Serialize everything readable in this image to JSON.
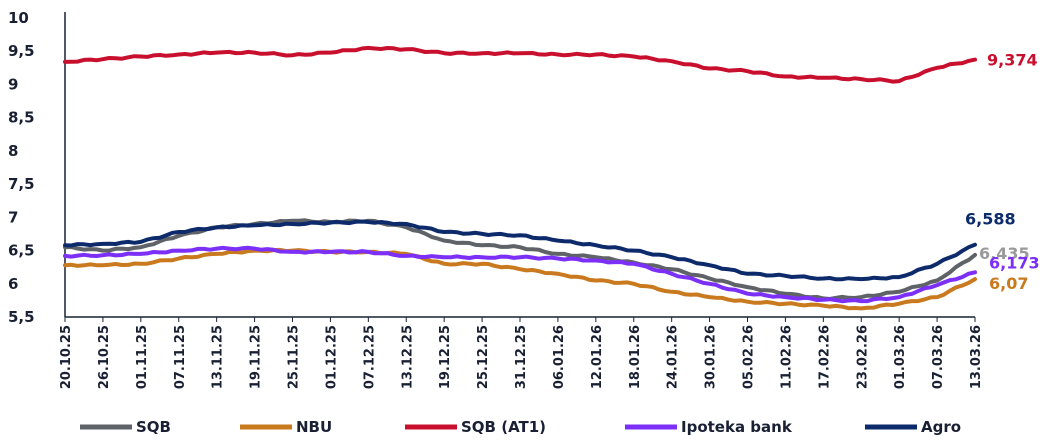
{
  "chart_data": {
    "type": "line",
    "title": "",
    "xlabel": "",
    "ylabel": "",
    "ylim": [
      5.5,
      10
    ],
    "yticks": [
      "10",
      "9,5",
      "9",
      "8,5",
      "8",
      "7,5",
      "7",
      "6,5",
      "6",
      "5,5"
    ],
    "ytick_values": [
      10,
      9.5,
      9,
      8.5,
      8,
      7.5,
      7,
      6.5,
      6,
      5.5
    ],
    "x": [
      "20.10.25",
      "26.10.25",
      "01.11.25",
      "07.11.25",
      "13.11.25",
      "19.11.25",
      "25.11.25",
      "01.12.25",
      "07.12.25",
      "13.12.25",
      "19.12.25",
      "25.12.25",
      "31.12.25",
      "06.01.26",
      "12.01.26",
      "18.01.26",
      "24.01.26",
      "30.01.26",
      "05.02.26",
      "11.02.26",
      "17.02.26",
      "23.02.26",
      "01.03.26",
      "07.03.26",
      "13.03.26"
    ],
    "grid": false,
    "legend_position": "bottom",
    "series": [
      {
        "name": "SQB",
        "color": "#5f6368",
        "values": [
          6.55,
          6.5,
          6.55,
          6.72,
          6.85,
          6.9,
          6.95,
          6.93,
          6.95,
          6.85,
          6.65,
          6.58,
          6.55,
          6.45,
          6.4,
          6.32,
          6.22,
          6.08,
          5.95,
          5.85,
          5.78,
          5.8,
          5.88,
          6.05,
          6.435
        ],
        "end_label": "6,435"
      },
      {
        "name": "NBU",
        "color": "#c97a1e",
        "values": [
          6.28,
          6.28,
          6.3,
          6.38,
          6.45,
          6.5,
          6.5,
          6.48,
          6.48,
          6.45,
          6.3,
          6.3,
          6.22,
          6.15,
          6.05,
          6.0,
          5.88,
          5.8,
          5.73,
          5.7,
          5.67,
          5.63,
          5.7,
          5.8,
          6.07
        ],
        "end_label": "6,07"
      },
      {
        "name": "SQB (AT1)",
        "color": "#c8102e",
        "values": [
          9.34,
          9.38,
          9.42,
          9.45,
          9.48,
          9.48,
          9.44,
          9.48,
          9.55,
          9.53,
          9.47,
          9.47,
          9.47,
          9.45,
          9.45,
          9.42,
          9.35,
          9.24,
          9.2,
          9.12,
          9.1,
          9.08,
          9.05,
          9.25,
          9.374
        ],
        "end_label": "9,374"
      },
      {
        "name": "Ipoteka bank",
        "color": "#7b2ff7",
        "values": [
          6.42,
          6.43,
          6.45,
          6.5,
          6.53,
          6.53,
          6.48,
          6.48,
          6.48,
          6.42,
          6.4,
          6.4,
          6.4,
          6.38,
          6.35,
          6.3,
          6.15,
          6.0,
          5.85,
          5.8,
          5.76,
          5.74,
          5.8,
          5.98,
          6.173
        ],
        "end_label": "6,173"
      },
      {
        "name": "Agro",
        "color": "#0d2b6b",
        "values": [
          6.58,
          6.6,
          6.63,
          6.78,
          6.85,
          6.88,
          6.9,
          6.92,
          6.93,
          6.9,
          6.78,
          6.75,
          6.73,
          6.65,
          6.58,
          6.5,
          6.4,
          6.28,
          6.15,
          6.12,
          6.08,
          6.07,
          6.1,
          6.3,
          6.588
        ],
        "end_label": "6,588"
      }
    ]
  }
}
